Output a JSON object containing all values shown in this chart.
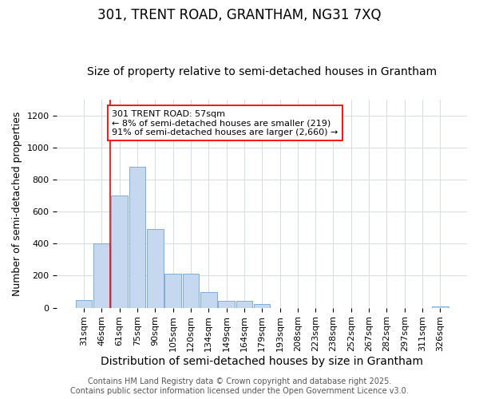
{
  "title": "301, TRENT ROAD, GRANTHAM, NG31 7XQ",
  "subtitle": "Size of property relative to semi-detached houses in Grantham",
  "xlabel": "Distribution of semi-detached houses by size in Grantham",
  "ylabel": "Number of semi-detached properties",
  "bar_labels": [
    "31sqm",
    "46sqm",
    "61sqm",
    "75sqm",
    "90sqm",
    "105sqm",
    "120sqm",
    "134sqm",
    "149sqm",
    "164sqm",
    "179sqm",
    "193sqm",
    "208sqm",
    "223sqm",
    "238sqm",
    "252sqm",
    "267sqm",
    "282sqm",
    "297sqm",
    "311sqm",
    "326sqm"
  ],
  "bar_values": [
    50,
    400,
    700,
    880,
    490,
    210,
    210,
    100,
    45,
    45,
    25,
    0,
    0,
    0,
    0,
    0,
    0,
    0,
    0,
    0,
    8
  ],
  "bar_color": "#c5d8f0",
  "bar_edge_color": "#7baed4",
  "grid_color": "#d0dce8",
  "background_color": "#ffffff",
  "red_line_index": 2,
  "annotation_line1": "301 TRENT ROAD: 57sqm",
  "annotation_line2": "← 8% of semi-detached houses are smaller (219)",
  "annotation_line3": "91% of semi-detached houses are larger (2,660) →",
  "ylim": [
    0,
    1300
  ],
  "yticks": [
    0,
    200,
    400,
    600,
    800,
    1000,
    1200
  ],
  "footer_line1": "Contains HM Land Registry data © Crown copyright and database right 2025.",
  "footer_line2": "Contains public sector information licensed under the Open Government Licence v3.0.",
  "title_fontsize": 12,
  "subtitle_fontsize": 10,
  "xlabel_fontsize": 10,
  "ylabel_fontsize": 9,
  "tick_fontsize": 8,
  "annotation_fontsize": 8,
  "footer_fontsize": 7
}
